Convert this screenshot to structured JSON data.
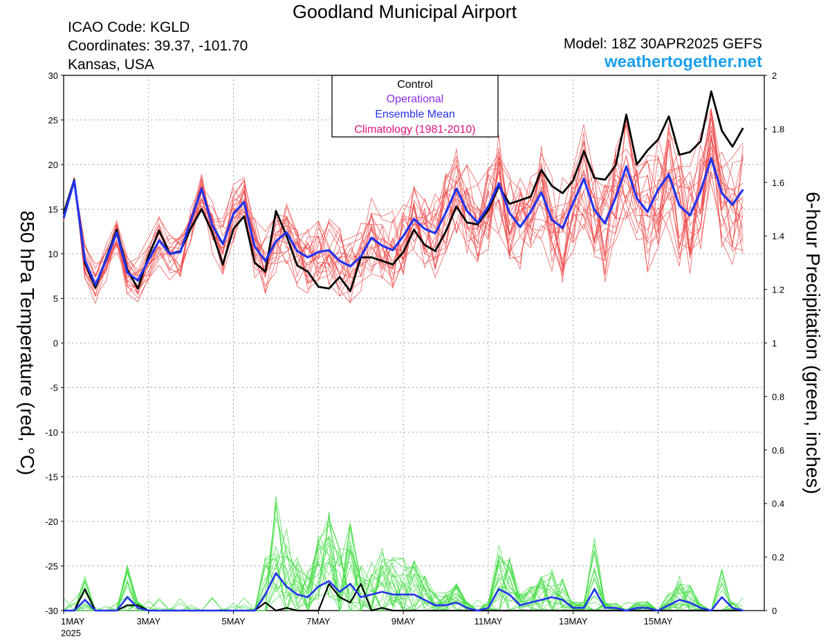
{
  "header": {
    "title": "Goodland Municipal Airport",
    "icao": "ICAO Code: KGLD",
    "coords": "Coordinates: 39.37, -101.70",
    "region": "Kansas, USA",
    "model": "Model: 18Z 30APR2025 GEFS",
    "site": "weathertogether.net"
  },
  "colors": {
    "members_temp": "#ee4444",
    "members_precip": "#44dd44",
    "control": "#000000",
    "operational": "#8a2be2",
    "mean": "#2233ee",
    "climo": "#e0107a"
  },
  "chart_data": {
    "type": "line",
    "ylabel_left": "850 hPa Temperature (red, °C)",
    "ylabel_right": "6-hour Precipitation (green, inches)",
    "ylim_left": [
      -30,
      30
    ],
    "ylim_right": [
      0,
      2
    ],
    "yticks_left": [
      "30",
      "25",
      "20",
      "15",
      "10",
      "5",
      "0",
      "-5",
      "-10",
      "-15",
      "-20",
      "-25",
      "-30"
    ],
    "yticks_right": [
      "2",
      "1.8",
      "1.6",
      "1.4",
      "1.2",
      "1",
      "0.8",
      "0.6",
      "0.4",
      "0.2",
      "0"
    ],
    "xlim_days": [
      0,
      16.5
    ],
    "x_tick_labels": [
      "1MAY",
      "3MAY",
      "5MAY",
      "7MAY",
      "9MAY",
      "11MAY",
      "13MAY",
      "15MAY"
    ],
    "x_tick_days": [
      0,
      2,
      4,
      6,
      8,
      10,
      12,
      14
    ],
    "x_year_label": "2025",
    "grid": true,
    "legend": {
      "position": "top-center",
      "entries": [
        "Control",
        "Operational",
        "Ensemble Mean",
        "Climatology (1981-2010)"
      ]
    },
    "step_hours": 6,
    "series": [
      {
        "name": "Control",
        "axis": "temperature",
        "values": [
          14.5,
          18.3,
          9.0,
          6.2,
          9.5,
          12.7,
          8.2,
          6.1,
          9.8,
          12.6,
          10.0,
          10.3,
          12.9,
          15.0,
          12.4,
          8.8,
          12.8,
          14.2,
          9.0,
          8.0,
          14.8,
          12.0,
          8.7,
          8.0,
          6.3,
          6.1,
          7.4,
          5.8,
          9.6,
          9.6,
          9.2,
          8.8,
          10.2,
          12.7,
          11.0,
          10.3,
          12.5,
          15.3,
          13.5,
          13.3,
          14.9,
          17.6,
          15.6,
          16.0,
          16.4,
          19.4,
          17.6,
          16.8,
          18.2,
          21.5,
          18.5,
          18.3,
          19.9,
          25.6,
          20.0,
          21.6,
          22.8,
          25.4,
          21.1,
          21.4,
          22.6,
          28.2,
          23.8,
          22.0,
          24.1
        ]
      },
      {
        "name": "Ensemble Mean",
        "axis": "temperature",
        "values": [
          14.0,
          18.2,
          9.3,
          6.5,
          9.3,
          12.4,
          7.9,
          7.0,
          9.3,
          11.5,
          10.0,
          10.2,
          13.8,
          17.3,
          13.2,
          11.1,
          14.5,
          15.8,
          10.8,
          9.2,
          11.4,
          12.4,
          10.3,
          9.6,
          10.2,
          10.4,
          9.2,
          8.6,
          9.7,
          11.8,
          10.9,
          10.4,
          12.0,
          13.9,
          12.8,
          12.3,
          14.6,
          17.3,
          14.8,
          13.5,
          15.3,
          17.9,
          14.6,
          13.0,
          14.7,
          16.9,
          13.8,
          12.9,
          15.7,
          18.4,
          14.9,
          13.4,
          16.3,
          19.8,
          16.2,
          14.7,
          17.2,
          18.9,
          15.4,
          14.3,
          17.0,
          20.7,
          16.8,
          15.5,
          17.2
        ]
      },
      {
        "name": "Control precipitation",
        "axis": "precipitation",
        "values": [
          0,
          0,
          0.08,
          0,
          0,
          0,
          0.02,
          0.02,
          0,
          0,
          0,
          0,
          0,
          0,
          0,
          0,
          0,
          0,
          0,
          0.03,
          0,
          0.01,
          0,
          0,
          0,
          0.1,
          0.05,
          0.03,
          0.1,
          0,
          0.01,
          0,
          0,
          0,
          0,
          0,
          0,
          0,
          0,
          0,
          0,
          0,
          0,
          0,
          0,
          0,
          0,
          0,
          0,
          0,
          0,
          0,
          0,
          0,
          0,
          0,
          0,
          0,
          0,
          0,
          0,
          0,
          0,
          0,
          0
        ]
      },
      {
        "name": "Ensemble mean precipitation",
        "axis": "precipitation",
        "values": [
          0,
          0,
          0.04,
          0,
          0,
          0,
          0.05,
          0.01,
          0,
          0,
          0,
          0,
          0,
          0,
          0,
          0,
          0,
          0,
          0,
          0.06,
          0.14,
          0.09,
          0.06,
          0.05,
          0.09,
          0.11,
          0.07,
          0.1,
          0.05,
          0.06,
          0.07,
          0.06,
          0.06,
          0.06,
          0.04,
          0.02,
          0.02,
          0.03,
          0.01,
          0,
          0.01,
          0.08,
          0.06,
          0.02,
          0.03,
          0.04,
          0.05,
          0.04,
          0.01,
          0.01,
          0.08,
          0.01,
          0.01,
          0,
          0.01,
          0.01,
          0,
          0.02,
          0.04,
          0.03,
          0.01,
          0,
          0.05,
          0.01,
          0
        ]
      }
    ]
  }
}
